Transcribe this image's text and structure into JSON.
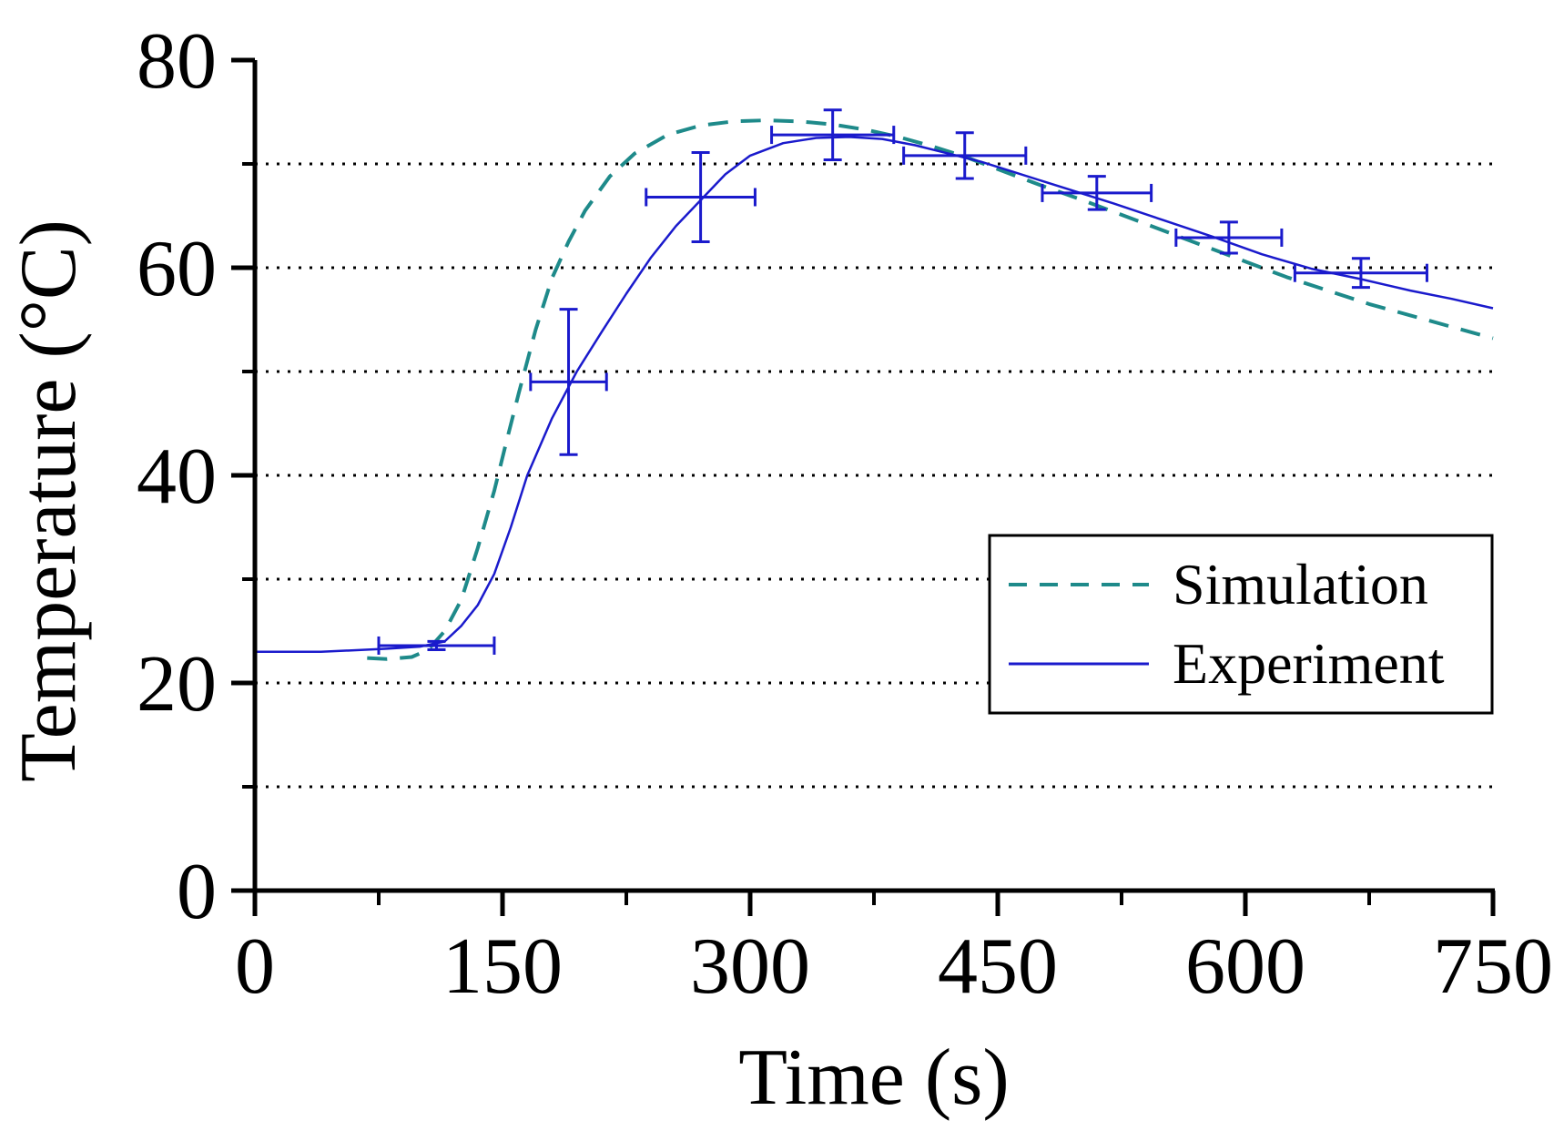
{
  "chart_data": {
    "type": "line",
    "xlabel": "Time (s)",
    "ylabel": "Temperature (°C)",
    "xlim": [
      0,
      750
    ],
    "ylim": [
      0,
      80
    ],
    "x_ticks": [
      "0",
      "150",
      "300",
      "450",
      "600",
      "750"
    ],
    "y_ticks": [
      "0",
      "20",
      "40",
      "60",
      "80"
    ],
    "x_minor_ticks": [
      75,
      225,
      375,
      525,
      675
    ],
    "gridlines_y": [
      10,
      20,
      30,
      40,
      50,
      60,
      70
    ],
    "grid": "horizontal dotted",
    "legend": {
      "position": "middle-right",
      "entries": [
        "Simulation",
        "Experiment"
      ]
    },
    "series": [
      {
        "name": "Simulation",
        "style": "dashed",
        "color": "#1e8a8a",
        "x": [
          68,
          80,
          95,
          105,
          115,
          125,
          135,
          145,
          152,
          160,
          170,
          180,
          190,
          200,
          215,
          230,
          250,
          270,
          290,
          310,
          330,
          350,
          370,
          390,
          410,
          430,
          450,
          475,
          500,
          525,
          550,
          575,
          600,
          625,
          650,
          675,
          700,
          725,
          750
        ],
        "y": [
          22.4,
          22.3,
          22.5,
          23.2,
          25,
          28,
          33,
          38.5,
          43,
          48,
          54,
          59,
          62.5,
          65.5,
          68.8,
          71,
          72.8,
          73.7,
          74.1,
          74.2,
          74.1,
          73.8,
          73.3,
          72.6,
          71.7,
          70.7,
          69.5,
          68,
          66.6,
          65.1,
          63.6,
          62.1,
          60.6,
          59.1,
          57.8,
          56.5,
          55.4,
          54.3,
          53.2
        ]
      },
      {
        "name": "Experiment",
        "style": "solid",
        "color": "#1a1acc",
        "x": [
          0,
          40,
          80,
          100,
          115,
          125,
          135,
          145,
          155,
          165,
          180,
          195,
          210,
          225,
          240,
          255,
          270,
          285,
          300,
          320,
          340,
          360,
          380,
          400,
          420,
          440,
          460,
          490,
          520,
          550,
          580,
          610,
          640,
          670,
          700,
          725,
          750
        ],
        "y": [
          23,
          23,
          23.3,
          23.5,
          24,
          25.5,
          27.5,
          30.5,
          35,
          40,
          45.5,
          50,
          53.8,
          57.5,
          61,
          64,
          66.5,
          69,
          70.8,
          72,
          72.5,
          72.6,
          72.4,
          71.8,
          71,
          70.2,
          69.2,
          67.7,
          66.2,
          64.6,
          63,
          61.3,
          59.9,
          58.9,
          57.8,
          57,
          56.1
        ]
      }
    ],
    "error_bars": [
      {
        "x": 110,
        "y": 23.6,
        "xerr": 35,
        "yerr": 0.4
      },
      {
        "x": 190,
        "y": 49,
        "xerr": 23,
        "yerr": 7
      },
      {
        "x": 270,
        "y": 66.8,
        "xerr": 33,
        "yerr": 4.3
      },
      {
        "x": 350,
        "y": 72.8,
        "xerr": 37,
        "yerr": 2.4
      },
      {
        "x": 430,
        "y": 70.8,
        "xerr": 37,
        "yerr": 2.2
      },
      {
        "x": 510,
        "y": 67.2,
        "xerr": 33,
        "yerr": 1.6
      },
      {
        "x": 590,
        "y": 62.9,
        "xerr": 32,
        "yerr": 1.5
      },
      {
        "x": 670,
        "y": 59.5,
        "xerr": 40,
        "yerr": 1.4
      }
    ]
  }
}
